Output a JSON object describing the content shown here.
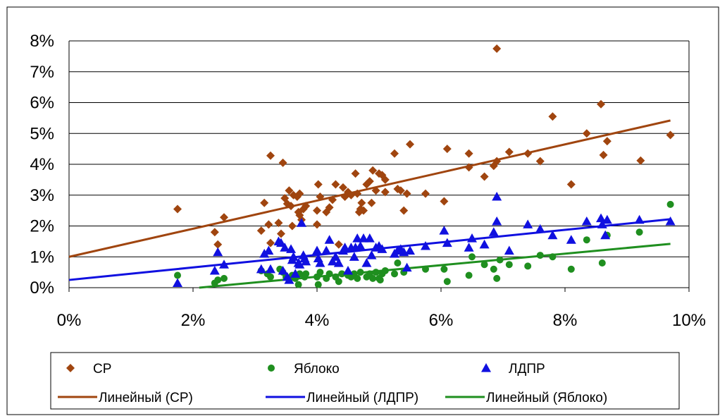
{
  "chart_data": {
    "type": "scatter",
    "title": "",
    "xlabel": "",
    "ylabel": "",
    "xlim": [
      0,
      10
    ],
    "ylim": [
      0,
      8
    ],
    "x_ticks": [
      "0%",
      "2%",
      "4%",
      "6%",
      "8%",
      "10%"
    ],
    "y_ticks": [
      "0%",
      "1%",
      "2%",
      "3%",
      "4%",
      "5%",
      "6%",
      "7%",
      "8%"
    ],
    "grid": "horizontal",
    "legend_position": "bottom",
    "series": [
      {
        "name": "СР",
        "color": "#a0450f",
        "marker": "diamond",
        "points": [
          [
            1.75,
            2.55
          ],
          [
            2.35,
            1.8
          ],
          [
            2.4,
            1.4
          ],
          [
            2.5,
            2.28
          ],
          [
            3.1,
            1.85
          ],
          [
            3.15,
            2.75
          ],
          [
            3.22,
            2.05
          ],
          [
            3.25,
            4.28
          ],
          [
            3.25,
            1.45
          ],
          [
            3.38,
            2.1
          ],
          [
            3.42,
            1.75
          ],
          [
            3.45,
            4.05
          ],
          [
            3.48,
            2.9
          ],
          [
            3.52,
            2.72
          ],
          [
            3.55,
            3.15
          ],
          [
            3.58,
            2.65
          ],
          [
            3.6,
            2.0
          ],
          [
            3.62,
            3.0
          ],
          [
            3.68,
            2.95
          ],
          [
            3.7,
            2.45
          ],
          [
            3.72,
            3.05
          ],
          [
            3.72,
            2.35
          ],
          [
            3.75,
            2.2
          ],
          [
            3.78,
            2.55
          ],
          [
            3.82,
            2.65
          ],
          [
            4.0,
            2.5
          ],
          [
            4.0,
            2.05
          ],
          [
            4.02,
            3.35
          ],
          [
            4.05,
            2.95
          ],
          [
            4.15,
            2.45
          ],
          [
            4.2,
            2.6
          ],
          [
            4.25,
            2.85
          ],
          [
            4.3,
            3.35
          ],
          [
            4.35,
            1.4
          ],
          [
            4.42,
            3.25
          ],
          [
            4.45,
            2.95
          ],
          [
            4.5,
            3.1
          ],
          [
            4.55,
            3.0
          ],
          [
            4.62,
            3.7
          ],
          [
            4.65,
            3.05
          ],
          [
            4.68,
            2.45
          ],
          [
            4.7,
            2.55
          ],
          [
            4.72,
            2.75
          ],
          [
            4.75,
            2.5
          ],
          [
            4.8,
            3.35
          ],
          [
            4.85,
            3.45
          ],
          [
            4.88,
            2.75
          ],
          [
            4.9,
            3.8
          ],
          [
            4.95,
            3.15
          ],
          [
            5.0,
            3.7
          ],
          [
            5.05,
            3.65
          ],
          [
            5.1,
            3.5
          ],
          [
            5.1,
            3.1
          ],
          [
            5.25,
            4.35
          ],
          [
            5.3,
            3.2
          ],
          [
            5.35,
            3.15
          ],
          [
            5.4,
            2.5
          ],
          [
            5.45,
            3.05
          ],
          [
            5.5,
            4.65
          ],
          [
            5.75,
            3.05
          ],
          [
            6.05,
            2.8
          ],
          [
            6.1,
            4.5
          ],
          [
            6.45,
            3.9
          ],
          [
            6.45,
            4.35
          ],
          [
            6.7,
            3.6
          ],
          [
            6.85,
            3.95
          ],
          [
            6.9,
            4.1
          ],
          [
            6.9,
            7.75
          ],
          [
            7.1,
            4.4
          ],
          [
            7.4,
            4.35
          ],
          [
            7.6,
            4.1
          ],
          [
            7.8,
            5.55
          ],
          [
            8.1,
            3.35
          ],
          [
            8.35,
            5.0
          ],
          [
            8.58,
            5.95
          ],
          [
            8.62,
            4.3
          ],
          [
            8.68,
            4.75
          ],
          [
            9.22,
            4.12
          ],
          [
            9.7,
            4.95
          ]
        ]
      },
      {
        "name": "Яблоко",
        "color": "#1f8f1f",
        "marker": "circle",
        "points": [
          [
            1.75,
            0.4
          ],
          [
            2.35,
            0.15
          ],
          [
            2.4,
            0.25
          ],
          [
            2.5,
            0.3
          ],
          [
            3.1,
            0.55
          ],
          [
            3.2,
            0.45
          ],
          [
            3.25,
            0.35
          ],
          [
            3.4,
            0.6
          ],
          [
            3.45,
            0.5
          ],
          [
            3.5,
            0.35
          ],
          [
            3.55,
            0.25
          ],
          [
            3.6,
            0.4
          ],
          [
            3.65,
            0.3
          ],
          [
            3.7,
            0.1
          ],
          [
            3.72,
            0.45
          ],
          [
            3.8,
            0.35
          ],
          [
            3.82,
            0.45
          ],
          [
            4.0,
            0.35
          ],
          [
            4.02,
            0.1
          ],
          [
            4.05,
            0.5
          ],
          [
            4.15,
            0.3
          ],
          [
            4.2,
            0.45
          ],
          [
            4.3,
            0.35
          ],
          [
            4.35,
            0.2
          ],
          [
            4.4,
            0.45
          ],
          [
            4.5,
            0.4
          ],
          [
            4.55,
            0.35
          ],
          [
            4.6,
            0.45
          ],
          [
            4.65,
            0.3
          ],
          [
            4.7,
            0.5
          ],
          [
            4.8,
            0.35
          ],
          [
            4.85,
            0.45
          ],
          [
            4.9,
            0.3
          ],
          [
            4.95,
            0.5
          ],
          [
            5.0,
            0.3
          ],
          [
            5.02,
            0.25
          ],
          [
            5.05,
            0.45
          ],
          [
            5.1,
            0.55
          ],
          [
            5.25,
            0.45
          ],
          [
            5.3,
            0.8
          ],
          [
            5.4,
            0.5
          ],
          [
            5.75,
            0.6
          ],
          [
            6.05,
            0.6
          ],
          [
            6.1,
            0.2
          ],
          [
            6.45,
            0.4
          ],
          [
            6.5,
            1.0
          ],
          [
            6.7,
            0.75
          ],
          [
            6.85,
            0.6
          ],
          [
            6.9,
            0.3
          ],
          [
            6.95,
            0.9
          ],
          [
            7.1,
            0.75
          ],
          [
            7.4,
            0.7
          ],
          [
            7.6,
            1.05
          ],
          [
            7.8,
            1.0
          ],
          [
            8.1,
            0.6
          ],
          [
            8.35,
            1.55
          ],
          [
            8.6,
            0.8
          ],
          [
            8.68,
            1.7
          ],
          [
            9.2,
            1.8
          ],
          [
            9.7,
            2.7
          ]
        ]
      },
      {
        "name": "ЛДПР",
        "color": "#1010e0",
        "marker": "triangle",
        "points": [
          [
            1.75,
            0.15
          ],
          [
            2.35,
            0.55
          ],
          [
            2.4,
            1.15
          ],
          [
            2.5,
            0.75
          ],
          [
            3.1,
            0.6
          ],
          [
            3.15,
            1.1
          ],
          [
            3.22,
            1.2
          ],
          [
            3.25,
            0.6
          ],
          [
            3.38,
            1.5
          ],
          [
            3.42,
            1.45
          ],
          [
            3.45,
            0.55
          ],
          [
            3.48,
            1.3
          ],
          [
            3.52,
            0.35
          ],
          [
            3.55,
            0.25
          ],
          [
            3.58,
            1.25
          ],
          [
            3.6,
            0.9
          ],
          [
            3.62,
            1.0
          ],
          [
            3.65,
            0.45
          ],
          [
            3.7,
            0.8
          ],
          [
            3.72,
            0.75
          ],
          [
            3.75,
            2.1
          ],
          [
            3.78,
            1.05
          ],
          [
            3.8,
            0.95
          ],
          [
            3.82,
            0.85
          ],
          [
            4.0,
            1.2
          ],
          [
            4.02,
            0.95
          ],
          [
            4.05,
            0.8
          ],
          [
            4.15,
            1.2
          ],
          [
            4.2,
            1.55
          ],
          [
            4.25,
            0.85
          ],
          [
            4.3,
            1.0
          ],
          [
            4.35,
            0.8
          ],
          [
            4.42,
            1.2
          ],
          [
            4.45,
            1.3
          ],
          [
            4.5,
            0.55
          ],
          [
            4.55,
            1.3
          ],
          [
            4.6,
            1.0
          ],
          [
            4.62,
            1.3
          ],
          [
            4.65,
            1.6
          ],
          [
            4.7,
            1.35
          ],
          [
            4.75,
            1.6
          ],
          [
            4.8,
            0.8
          ],
          [
            4.85,
            1.6
          ],
          [
            4.88,
            1.05
          ],
          [
            4.95,
            1.3
          ],
          [
            5.0,
            1.35
          ],
          [
            5.05,
            1.25
          ],
          [
            5.25,
            1.1
          ],
          [
            5.3,
            1.2
          ],
          [
            5.35,
            1.25
          ],
          [
            5.4,
            1.15
          ],
          [
            5.45,
            0.65
          ],
          [
            5.5,
            1.2
          ],
          [
            5.75,
            1.35
          ],
          [
            6.05,
            1.85
          ],
          [
            6.1,
            1.45
          ],
          [
            6.45,
            1.3
          ],
          [
            6.5,
            1.6
          ],
          [
            6.7,
            1.4
          ],
          [
            6.85,
            1.8
          ],
          [
            6.9,
            2.15
          ],
          [
            6.9,
            2.95
          ],
          [
            7.1,
            1.2
          ],
          [
            7.4,
            2.05
          ],
          [
            7.6,
            1.9
          ],
          [
            7.8,
            1.7
          ],
          [
            8.1,
            1.55
          ],
          [
            8.35,
            2.15
          ],
          [
            8.58,
            2.25
          ],
          [
            8.6,
            2.05
          ],
          [
            8.65,
            1.7
          ],
          [
            8.68,
            2.2
          ],
          [
            9.2,
            2.2
          ],
          [
            9.7,
            2.15
          ]
        ]
      }
    ],
    "trendlines": [
      {
        "name": "Линейный (СР)",
        "color": "#a0450f",
        "x": [
          0,
          9.7
        ],
        "y": [
          1.0,
          5.42
        ]
      },
      {
        "name": "Линейный (ЛДПР)",
        "color": "#1010e0",
        "x": [
          0,
          9.7
        ],
        "y": [
          0.25,
          2.22
        ]
      },
      {
        "name": "Линейный (Яблоко)",
        "color": "#1f8f1f",
        "x": [
          2.1,
          9.7
        ],
        "y": [
          0.0,
          1.42
        ]
      }
    ]
  }
}
